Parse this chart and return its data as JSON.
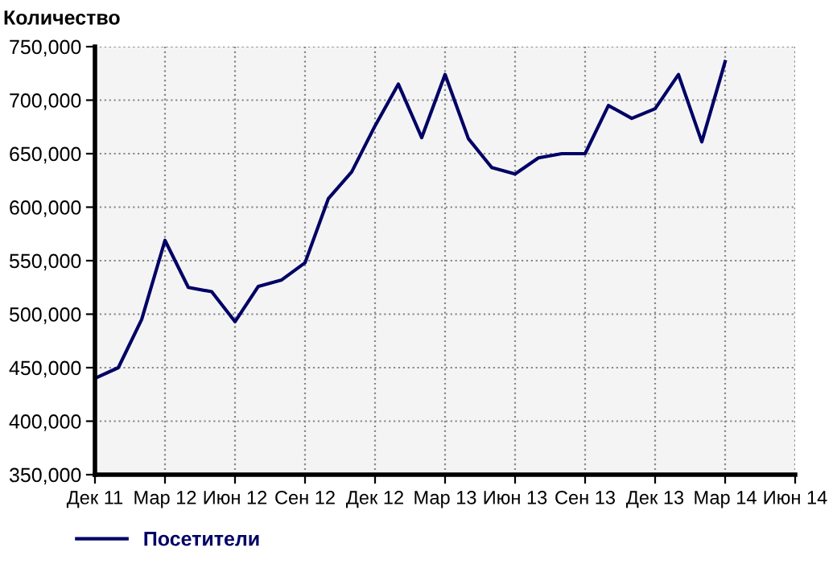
{
  "chart_data": {
    "type": "line",
    "ylabel": "Количество",
    "x": [
      "2011-12",
      "2012-01",
      "2012-02",
      "2012-03",
      "2012-04",
      "2012-05",
      "2012-06",
      "2012-07",
      "2012-08",
      "2012-09",
      "2012-10",
      "2012-11",
      "2012-12",
      "2013-01",
      "2013-02",
      "2013-03",
      "2013-04",
      "2013-05",
      "2013-06",
      "2013-07",
      "2013-08",
      "2013-09",
      "2013-10",
      "2013-11",
      "2013-12",
      "2014-01",
      "2014-02",
      "2014-03"
    ],
    "series": [
      {
        "name": "Посетители",
        "color": "#000066",
        "values": [
          440000,
          450000,
          495000,
          569000,
          525000,
          521000,
          493000,
          526000,
          532000,
          548000,
          608000,
          633000,
          676000,
          715000,
          665000,
          724000,
          664000,
          637000,
          631000,
          646000,
          650000,
          650000,
          695000,
          683000,
          692000,
          724000,
          661000,
          736000
        ]
      }
    ],
    "xlim": [
      "2011-12",
      "2014-06"
    ],
    "xticks": [
      {
        "value": "2011-12",
        "label": "Дек 11"
      },
      {
        "value": "2012-03",
        "label": "Мар 12"
      },
      {
        "value": "2012-06",
        "label": "Июн 12"
      },
      {
        "value": "2012-09",
        "label": "Сен 12"
      },
      {
        "value": "2012-12",
        "label": "Дек 12"
      },
      {
        "value": "2013-03",
        "label": "Мар 13"
      },
      {
        "value": "2013-06",
        "label": "Июн 13"
      },
      {
        "value": "2013-09",
        "label": "Сен 13"
      },
      {
        "value": "2013-12",
        "label": "Дек 13"
      },
      {
        "value": "2014-03",
        "label": "Мар 14"
      },
      {
        "value": "2014-06",
        "label": "Июн 14"
      }
    ],
    "ylim": [
      350000,
      750000
    ],
    "yticks": [
      {
        "value": 350000,
        "label": "350,000"
      },
      {
        "value": 400000,
        "label": "400,000"
      },
      {
        "value": 450000,
        "label": "450,000"
      },
      {
        "value": 500000,
        "label": "500,000"
      },
      {
        "value": 550000,
        "label": "550,000"
      },
      {
        "value": 600000,
        "label": "600,000"
      },
      {
        "value": 650000,
        "label": "650,000"
      },
      {
        "value": 700000,
        "label": "700,000"
      },
      {
        "value": 750000,
        "label": "750,000"
      }
    ],
    "grid": true,
    "legend": "bottom left",
    "marker": "none",
    "line_style": "solid"
  }
}
